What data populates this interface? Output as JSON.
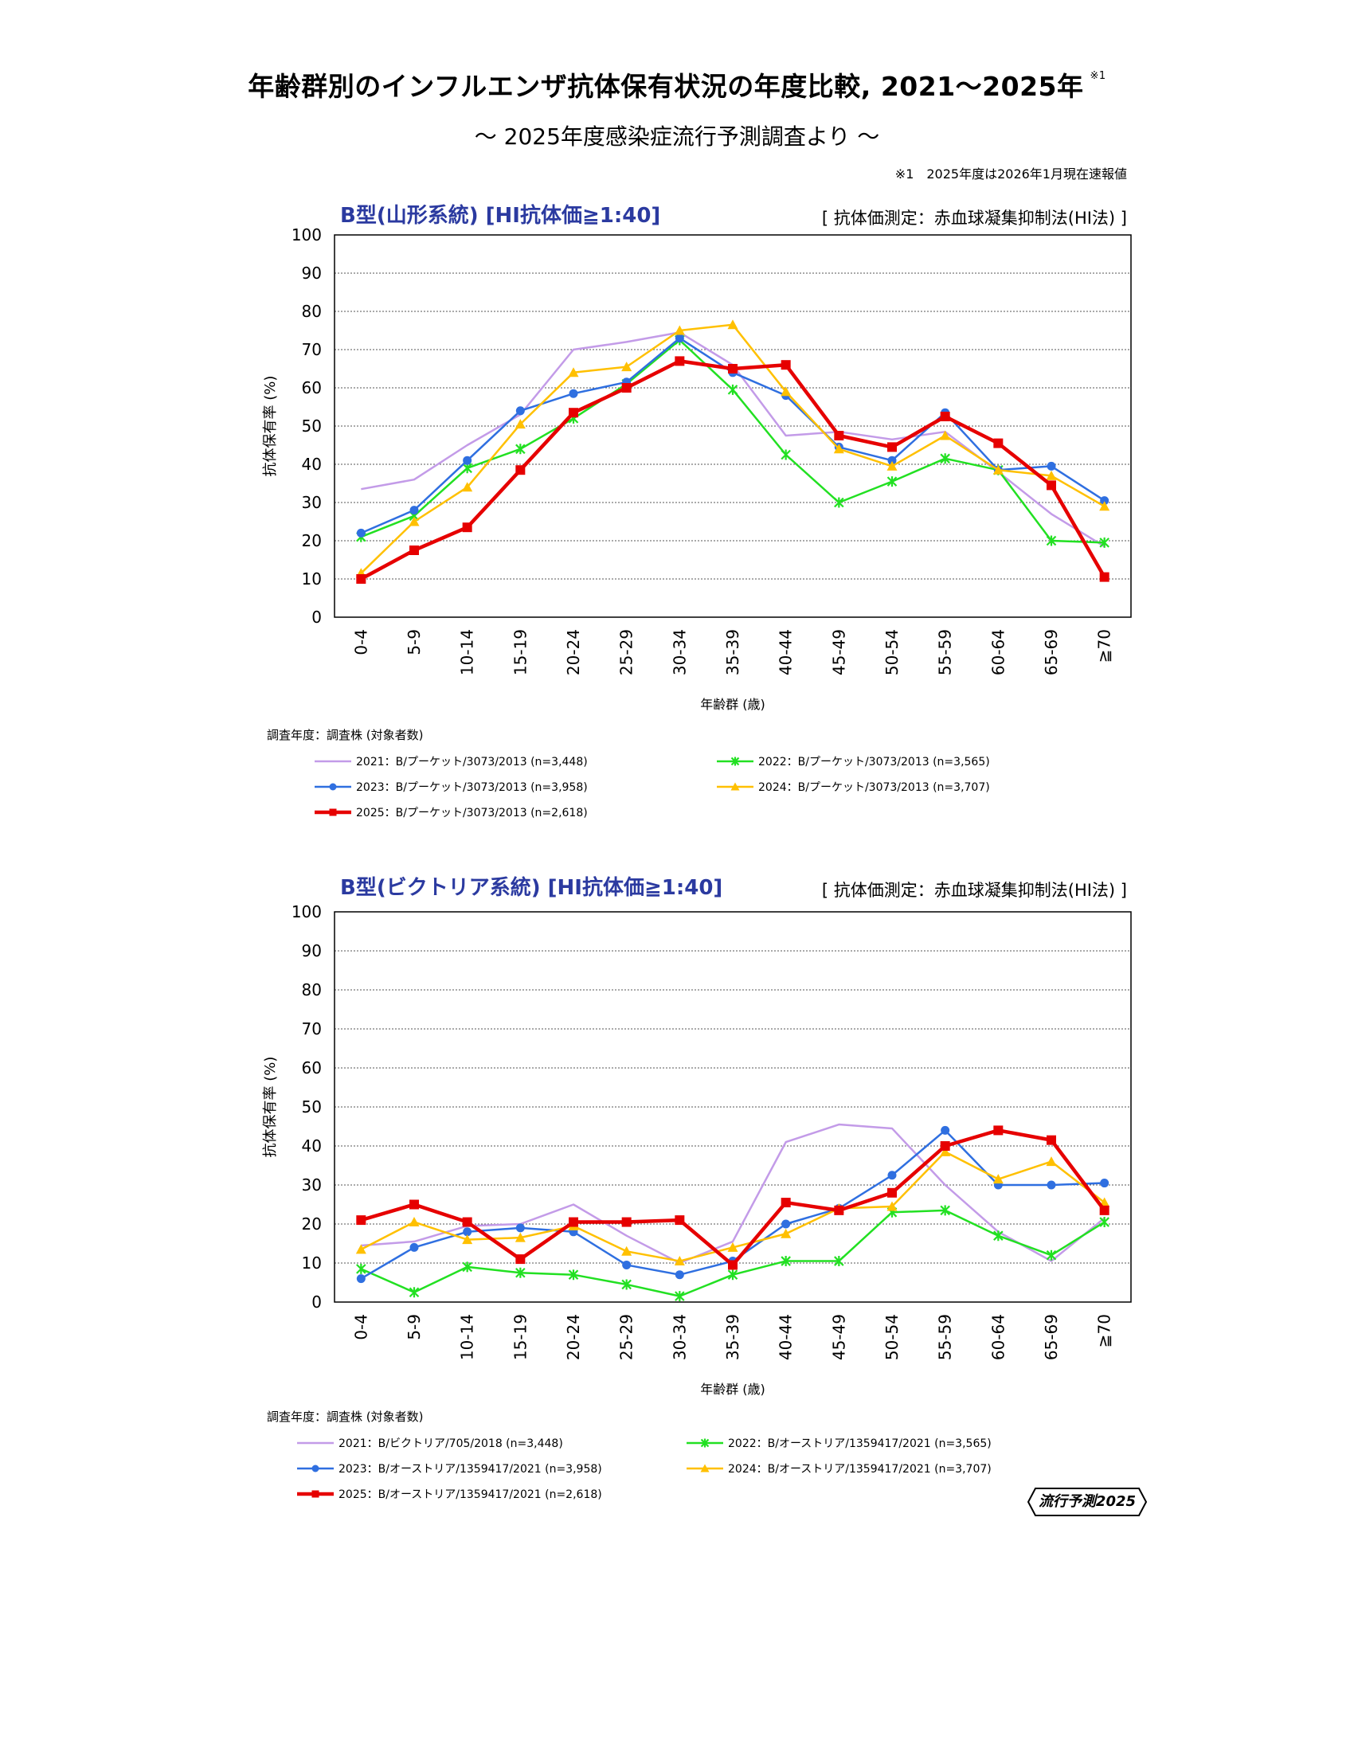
{
  "header": {
    "title": "年齢群別のインフルエンザ抗体保有状況の年度比較, 2021～2025年",
    "title_note": "※1",
    "subtitle": "～ 2025年度感染症流行予測調査より ～",
    "footnote": "※1　2025年度は2026年1月現在速報値"
  },
  "badge": {
    "label": "流行予測2025"
  },
  "colors": {
    "2021": "#c39be8",
    "2022": "#22e022",
    "2023": "#2f6fe0",
    "2024": "#ffc000",
    "2025": "#e60000",
    "title_blue": "#2b3aa0"
  },
  "chart_data": [
    {
      "type": "line",
      "title": "B型(山形系統) [HI抗体価≧1:40]",
      "method": "[ 抗体価測定：赤血球凝集抑制法(HI法) ]",
      "xlabel": "年齢群 (歳)",
      "ylabel": "抗体保有率 (%)",
      "ylim": [
        0,
        100
      ],
      "yticks": [
        0,
        10,
        20,
        30,
        40,
        50,
        60,
        70,
        80,
        90,
        100
      ],
      "categories": [
        "0-4",
        "5-9",
        "10-14",
        "15-19",
        "20-24",
        "25-29",
        "30-34",
        "35-39",
        "40-44",
        "45-49",
        "50-54",
        "55-59",
        "60-64",
        "65-69",
        "≧70"
      ],
      "legend_heading": "調査年度：調査株 (対象者数)",
      "series": [
        {
          "key": "2021",
          "name": "2021：B/プーケット/3073/2013 (n=3,448)",
          "marker": "none",
          "values": [
            33.5,
            36,
            45,
            53,
            70,
            72,
            74.5,
            66,
            47.5,
            48.5,
            46.5,
            48.5,
            38,
            27,
            18.5
          ]
        },
        {
          "key": "2022",
          "name": "2022：B/プーケット/3073/2013 (n=3,565)",
          "marker": "star",
          "values": [
            21,
            26.5,
            39,
            44,
            52,
            61,
            72.5,
            59.5,
            42.5,
            30,
            35.5,
            41.5,
            38.5,
            20,
            19.5
          ]
        },
        {
          "key": "2023",
          "name": "2023：B/プーケット/3073/2013 (n=3,958)",
          "marker": "circle",
          "values": [
            22,
            28,
            41,
            54,
            58.5,
            61.5,
            73,
            64,
            58,
            44.5,
            41,
            53.5,
            38.5,
            39.5,
            30.5
          ]
        },
        {
          "key": "2024",
          "name": "2024：B/プーケット/3073/2013 (n=3,707)",
          "marker": "triangle",
          "values": [
            11.5,
            25,
            34,
            50.5,
            64,
            65.5,
            75,
            76.5,
            59,
            44,
            39.5,
            47.5,
            38.5,
            37,
            29
          ]
        },
        {
          "key": "2025",
          "name": "2025：B/プーケット/3073/2013 (n=2,618)",
          "marker": "square",
          "values": [
            10,
            17.5,
            23.5,
            38.5,
            53.5,
            60,
            67,
            65,
            66,
            47.5,
            44.5,
            52.5,
            45.5,
            34.5,
            10.5
          ]
        }
      ]
    },
    {
      "type": "line",
      "title": "B型(ビクトリア系統) [HI抗体価≧1:40]",
      "method": "[ 抗体価測定：赤血球凝集抑制法(HI法) ]",
      "xlabel": "年齢群 (歳)",
      "ylabel": "抗体保有率 (%)",
      "ylim": [
        0,
        100
      ],
      "yticks": [
        0,
        10,
        20,
        30,
        40,
        50,
        60,
        70,
        80,
        90,
        100
      ],
      "categories": [
        "0-4",
        "5-9",
        "10-14",
        "15-19",
        "20-24",
        "25-29",
        "30-34",
        "35-39",
        "40-44",
        "45-49",
        "50-54",
        "55-59",
        "60-64",
        "65-69",
        "≧70"
      ],
      "legend_heading": "調査年度：調査株 (対象者数)",
      "series": [
        {
          "key": "2021",
          "name": "2021：B/ビクトリア/705/2018 (n=3,448)",
          "marker": "none",
          "values": [
            14.5,
            15.5,
            19.5,
            20,
            25,
            17,
            10,
            15.5,
            41,
            45.5,
            44.5,
            30,
            18,
            10.5,
            21.5
          ]
        },
        {
          "key": "2022",
          "name": "2022：B/オーストリア/1359417/2021 (n=3,565)",
          "marker": "star",
          "values": [
            8.5,
            2.5,
            9,
            7.5,
            7,
            4.5,
            1.5,
            7,
            10.5,
            10.5,
            23,
            23.5,
            17,
            12,
            20.5
          ]
        },
        {
          "key": "2023",
          "name": "2023：B/オーストリア/1359417/2021 (n=3,958)",
          "marker": "circle",
          "values": [
            6,
            14,
            18,
            19,
            18,
            9.5,
            7,
            10.5,
            20,
            24,
            32.5,
            44,
            30,
            30,
            30.5
          ]
        },
        {
          "key": "2024",
          "name": "2024：B/オーストリア/1359417/2021 (n=3,707)",
          "marker": "triangle",
          "values": [
            13.5,
            20.5,
            16,
            16.5,
            19.5,
            13,
            10.5,
            14,
            17.5,
            24,
            24.5,
            38.5,
            31.5,
            36,
            25.5
          ]
        },
        {
          "key": "2025",
          "name": "2025：B/オーストリア/1359417/2021 (n=2,618)",
          "marker": "square",
          "values": [
            21,
            25,
            20.5,
            11,
            20.5,
            20.5,
            21,
            9.5,
            25.5,
            23.5,
            28,
            40,
            44,
            41.5,
            23.5
          ]
        }
      ]
    }
  ]
}
